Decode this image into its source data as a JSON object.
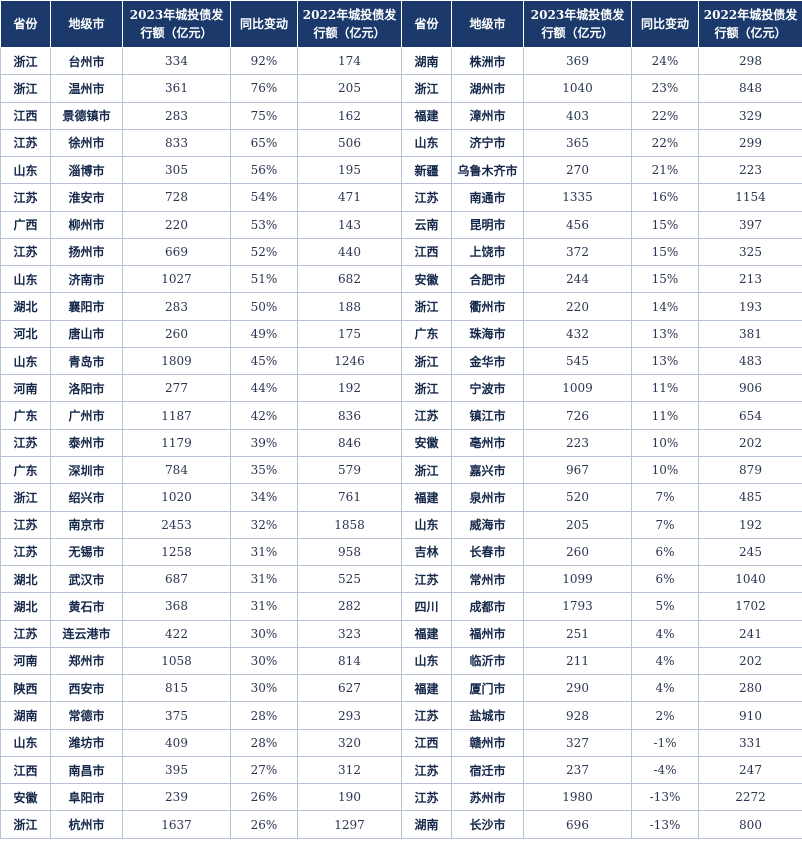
{
  "headers": {
    "province": "省份",
    "city": "地级市",
    "issuance_2023": "2023年城投债发行额（亿元）",
    "yoy": "同比变动",
    "issuance_2022": "2022年城投债发行额（亿元）"
  },
  "rows": [
    [
      [
        "浙江",
        "台州市",
        "334",
        "92%",
        "174"
      ],
      [
        "湖南",
        "株洲市",
        "369",
        "24%",
        "298"
      ]
    ],
    [
      [
        "浙江",
        "温州市",
        "361",
        "76%",
        "205"
      ],
      [
        "浙江",
        "湖州市",
        "1040",
        "23%",
        "848"
      ]
    ],
    [
      [
        "江西",
        "景德镇市",
        "283",
        "75%",
        "162"
      ],
      [
        "福建",
        "漳州市",
        "403",
        "22%",
        "329"
      ]
    ],
    [
      [
        "江苏",
        "徐州市",
        "833",
        "65%",
        "506"
      ],
      [
        "山东",
        "济宁市",
        "365",
        "22%",
        "299"
      ]
    ],
    [
      [
        "山东",
        "淄博市",
        "305",
        "56%",
        "195"
      ],
      [
        "新疆",
        "乌鲁木齐市",
        "270",
        "21%",
        "223"
      ]
    ],
    [
      [
        "江苏",
        "淮安市",
        "728",
        "54%",
        "471"
      ],
      [
        "江苏",
        "南通市",
        "1335",
        "16%",
        "1154"
      ]
    ],
    [
      [
        "广西",
        "柳州市",
        "220",
        "53%",
        "143"
      ],
      [
        "云南",
        "昆明市",
        "456",
        "15%",
        "397"
      ]
    ],
    [
      [
        "江苏",
        "扬州市",
        "669",
        "52%",
        "440"
      ],
      [
        "江西",
        "上饶市",
        "372",
        "15%",
        "325"
      ]
    ],
    [
      [
        "山东",
        "济南市",
        "1027",
        "51%",
        "682"
      ],
      [
        "安徽",
        "合肥市",
        "244",
        "15%",
        "213"
      ]
    ],
    [
      [
        "湖北",
        "襄阳市",
        "283",
        "50%",
        "188"
      ],
      [
        "浙江",
        "衢州市",
        "220",
        "14%",
        "193"
      ]
    ],
    [
      [
        "河北",
        "唐山市",
        "260",
        "49%",
        "175"
      ],
      [
        "广东",
        "珠海市",
        "432",
        "13%",
        "381"
      ]
    ],
    [
      [
        "山东",
        "青岛市",
        "1809",
        "45%",
        "1246"
      ],
      [
        "浙江",
        "金华市",
        "545",
        "13%",
        "483"
      ]
    ],
    [
      [
        "河南",
        "洛阳市",
        "277",
        "44%",
        "192"
      ],
      [
        "浙江",
        "宁波市",
        "1009",
        "11%",
        "906"
      ]
    ],
    [
      [
        "广东",
        "广州市",
        "1187",
        "42%",
        "836"
      ],
      [
        "江苏",
        "镇江市",
        "726",
        "11%",
        "654"
      ]
    ],
    [
      [
        "江苏",
        "泰州市",
        "1179",
        "39%",
        "846"
      ],
      [
        "安徽",
        "亳州市",
        "223",
        "10%",
        "202"
      ]
    ],
    [
      [
        "广东",
        "深圳市",
        "784",
        "35%",
        "579"
      ],
      [
        "浙江",
        "嘉兴市",
        "967",
        "10%",
        "879"
      ]
    ],
    [
      [
        "浙江",
        "绍兴市",
        "1020",
        "34%",
        "761"
      ],
      [
        "福建",
        "泉州市",
        "520",
        "7%",
        "485"
      ]
    ],
    [
      [
        "江苏",
        "南京市",
        "2453",
        "32%",
        "1858"
      ],
      [
        "山东",
        "威海市",
        "205",
        "7%",
        "192"
      ]
    ],
    [
      [
        "江苏",
        "无锡市",
        "1258",
        "31%",
        "958"
      ],
      [
        "吉林",
        "长春市",
        "260",
        "6%",
        "245"
      ]
    ],
    [
      [
        "湖北",
        "武汉市",
        "687",
        "31%",
        "525"
      ],
      [
        "江苏",
        "常州市",
        "1099",
        "6%",
        "1040"
      ]
    ],
    [
      [
        "湖北",
        "黄石市",
        "368",
        "31%",
        "282"
      ],
      [
        "四川",
        "成都市",
        "1793",
        "5%",
        "1702"
      ]
    ],
    [
      [
        "江苏",
        "连云港市",
        "422",
        "30%",
        "323"
      ],
      [
        "福建",
        "福州市",
        "251",
        "4%",
        "241"
      ]
    ],
    [
      [
        "河南",
        "郑州市",
        "1058",
        "30%",
        "814"
      ],
      [
        "山东",
        "临沂市",
        "211",
        "4%",
        "202"
      ]
    ],
    [
      [
        "陕西",
        "西安市",
        "815",
        "30%",
        "627"
      ],
      [
        "福建",
        "厦门市",
        "290",
        "4%",
        "280"
      ]
    ],
    [
      [
        "湖南",
        "常德市",
        "375",
        "28%",
        "293"
      ],
      [
        "江苏",
        "盐城市",
        "928",
        "2%",
        "910"
      ]
    ],
    [
      [
        "山东",
        "潍坊市",
        "409",
        "28%",
        "320"
      ],
      [
        "江西",
        "赣州市",
        "327",
        "-1%",
        "331"
      ]
    ],
    [
      [
        "江西",
        "南昌市",
        "395",
        "27%",
        "312"
      ],
      [
        "江苏",
        "宿迁市",
        "237",
        "-4%",
        "247"
      ]
    ],
    [
      [
        "安徽",
        "阜阳市",
        "239",
        "26%",
        "190"
      ],
      [
        "江苏",
        "苏州市",
        "1980",
        "-13%",
        "2272"
      ]
    ],
    [
      [
        "浙江",
        "杭州市",
        "1637",
        "26%",
        "1297"
      ],
      [
        "湖南",
        "长沙市",
        "696",
        "-13%",
        "800"
      ]
    ]
  ]
}
